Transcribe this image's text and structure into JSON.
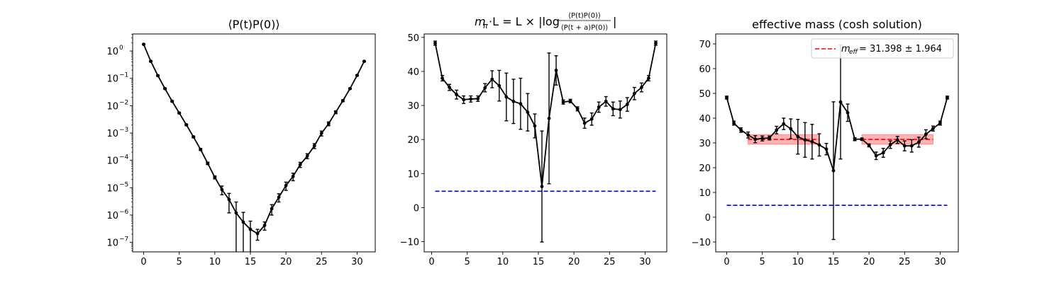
{
  "chart_data": [
    {
      "type": "line",
      "title": "⟨P(t)P(0)⟩",
      "yscale": "log",
      "xlim": [
        -1.55,
        32.55
      ],
      "ylim": [
        4.5e-08,
        4.2
      ],
      "xticks": [
        0,
        5,
        10,
        15,
        20,
        25,
        30
      ],
      "yticks": [
        {
          "value": 1,
          "base": "10",
          "exp": "0"
        },
        {
          "value": 0.1,
          "base": "10",
          "exp": "−1"
        },
        {
          "value": 0.01,
          "base": "10",
          "exp": "−2"
        },
        {
          "value": 0.001,
          "base": "10",
          "exp": "−3"
        },
        {
          "value": 0.0001,
          "base": "10",
          "exp": "−4"
        },
        {
          "value": 1e-05,
          "base": "10",
          "exp": "−5"
        },
        {
          "value": 1e-06,
          "base": "10",
          "exp": "−6"
        },
        {
          "value": 1e-07,
          "base": "10",
          "exp": "−7"
        }
      ],
      "series": [
        {
          "color": "#000000",
          "points": [
            {
              "x": 0,
              "y": 1.75,
              "err": 0.07
            },
            {
              "x": 1,
              "y": 0.42,
              "err": 0.02
            },
            {
              "x": 2,
              "y": 0.125,
              "err": 0.006
            },
            {
              "x": 3,
              "y": 0.042,
              "err": 0.002
            },
            {
              "x": 4,
              "y": 0.0145,
              "err": 0.0008
            },
            {
              "x": 5,
              "y": 0.0054,
              "err": 0.0003
            },
            {
              "x": 6,
              "y": 0.002,
              "err": 0.00012
            },
            {
              "x": 7,
              "y": 0.00072,
              "err": 5e-05
            },
            {
              "x": 8,
              "y": 0.00025,
              "err": 2e-05
            },
            {
              "x": 9,
              "y": 7.8e-05,
              "err": 8e-06
            },
            {
              "x": 10,
              "y": 2.4e-05,
              "err": 3e-06
            },
            {
              "x": 11,
              "y": 8.5e-06,
              "err": 3e-06
            },
            {
              "x": 12,
              "y": 3.7e-06,
              "err": 2.5e-06
            },
            {
              "x": 13,
              "y": 1.2e-06,
              "err": 1.8e-06
            },
            {
              "x": 14,
              "y": 5.5e-07,
              "err": 7e-07
            },
            {
              "x": 15,
              "y": 3e-07,
              "err": 3e-07
            },
            {
              "x": 16,
              "y": 2.1e-07,
              "err": 9e-08
            },
            {
              "x": 17,
              "y": 4.2e-07,
              "err": 1.4e-07
            },
            {
              "x": 18,
              "y": 1.7e-06,
              "err": 7e-07
            },
            {
              "x": 19,
              "y": 4.5e-06,
              "err": 1.5e-06
            },
            {
              "x": 20,
              "y": 1.2e-05,
              "err": 4e-06
            },
            {
              "x": 21,
              "y": 2.6e-05,
              "err": 8e-06
            },
            {
              "x": 22,
              "y": 7e-05,
              "err": 1.5e-05
            },
            {
              "x": 23,
              "y": 0.000145,
              "err": 3e-05
            },
            {
              "x": 24,
              "y": 0.00034,
              "err": 7e-05
            },
            {
              "x": 25,
              "y": 0.00098,
              "err": 0.0002
            },
            {
              "x": 26,
              "y": 0.0022,
              "err": 0.00035
            },
            {
              "x": 27,
              "y": 0.0058,
              "err": 0.0007
            },
            {
              "x": 28,
              "y": 0.0152,
              "err": 0.0012
            },
            {
              "x": 29,
              "y": 0.042,
              "err": 0.002
            },
            {
              "x": 30,
              "y": 0.128,
              "err": 0.005
            },
            {
              "x": 31,
              "y": 0.42,
              "err": 0.015
            }
          ]
        }
      ]
    },
    {
      "type": "line",
      "title_parts": {
        "mass": "m",
        "mass_sub": "π",
        "mid": "·L = L × |log",
        "num": "⟨P(t)P(0)⟩",
        "den": "⟨P(t + a)P(0)⟩",
        "end": "|"
      },
      "xlim": [
        -1.05,
        33.05
      ],
      "ylim": [
        -13,
        51
      ],
      "xticks": [
        0,
        5,
        10,
        15,
        20,
        25,
        30
      ],
      "yticks": [
        -10,
        0,
        10,
        20,
        30,
        40,
        50
      ],
      "series": [
        {
          "color": "#000000",
          "points": [
            {
              "x": 0.5,
              "y": 48.3,
              "err": 0.6
            },
            {
              "x": 1.5,
              "y": 38.0,
              "err": 0.8
            },
            {
              "x": 2.5,
              "y": 35.3,
              "err": 0.9
            },
            {
              "x": 3.5,
              "y": 33.2,
              "err": 1.3
            },
            {
              "x": 4.5,
              "y": 31.7,
              "err": 1.1
            },
            {
              "x": 5.5,
              "y": 31.9,
              "err": 0.9
            },
            {
              "x": 6.5,
              "y": 32.0,
              "err": 0.8
            },
            {
              "x": 7.5,
              "y": 35.2,
              "err": 1.2
            },
            {
              "x": 8.5,
              "y": 37.7,
              "err": 2.5
            },
            {
              "x": 9.5,
              "y": 35.8,
              "err": 4.5
            },
            {
              "x": 10.5,
              "y": 32.5,
              "err": 7.0
            },
            {
              "x": 11.5,
              "y": 31.2,
              "err": 6.5
            },
            {
              "x": 12.5,
              "y": 30.5,
              "err": 7.5
            },
            {
              "x": 13.5,
              "y": 28.0,
              "err": 5.5
            },
            {
              "x": 14.5,
              "y": 24.0,
              "err": 3.5
            },
            {
              "x": 15.5,
              "y": 6.2,
              "err": 16.3
            },
            {
              "x": 16.5,
              "y": 26.2,
              "err": 19.2
            },
            {
              "x": 17.5,
              "y": 40.3,
              "err": 4.3
            },
            {
              "x": 18.5,
              "y": 31.0,
              "err": 0.6
            },
            {
              "x": 19.5,
              "y": 31.3,
              "err": 0.5
            },
            {
              "x": 20.5,
              "y": 29.0,
              "err": 0.6
            },
            {
              "x": 21.5,
              "y": 24.8,
              "err": 1.5
            },
            {
              "x": 22.5,
              "y": 26.0,
              "err": 1.8
            },
            {
              "x": 23.5,
              "y": 29.5,
              "err": 1.5
            },
            {
              "x": 24.5,
              "y": 31.2,
              "err": 1.4
            },
            {
              "x": 25.5,
              "y": 29.0,
              "err": 2.0
            },
            {
              "x": 26.5,
              "y": 28.8,
              "err": 2.5
            },
            {
              "x": 27.5,
              "y": 30.3,
              "err": 2.0
            },
            {
              "x": 28.5,
              "y": 33.5,
              "err": 1.8
            },
            {
              "x": 29.5,
              "y": 35.3,
              "err": 1.3
            },
            {
              "x": 30.5,
              "y": 38.0,
              "err": 0.8
            },
            {
              "x": 31.5,
              "y": 48.3,
              "err": 0.6
            }
          ]
        }
      ],
      "hlines": [
        {
          "y": 4.8,
          "x0": 0.5,
          "x1": 31.5,
          "color": "#0000ff",
          "style": "dashed"
        }
      ]
    },
    {
      "type": "line",
      "title": "effective mass (cosh solution)",
      "xlim": [
        -1.55,
        32.55
      ],
      "ylim": [
        -14,
        74
      ],
      "xticks": [
        0,
        5,
        10,
        15,
        20,
        25,
        30
      ],
      "yticks": [
        -10,
        0,
        10,
        20,
        30,
        40,
        50,
        60,
        70
      ],
      "legend": {
        "placement": "top-right",
        "label_sub": "eff",
        "label_value": " = 31.398 ± 1.964",
        "color": "#ff0000"
      },
      "series": [
        {
          "color": "#000000",
          "points": [
            {
              "x": 0,
              "y": 48.3,
              "err": 0.6
            },
            {
              "x": 1,
              "y": 38.0,
              "err": 0.8
            },
            {
              "x": 2,
              "y": 35.2,
              "err": 0.9
            },
            {
              "x": 3,
              "y": 33.2,
              "err": 1.2
            },
            {
              "x": 4,
              "y": 31.5,
              "err": 1.4
            },
            {
              "x": 5,
              "y": 31.8,
              "err": 1.0
            },
            {
              "x": 6,
              "y": 32.0,
              "err": 0.8
            },
            {
              "x": 7,
              "y": 35.2,
              "err": 1.5
            },
            {
              "x": 8,
              "y": 37.7,
              "err": 2.3
            },
            {
              "x": 9,
              "y": 35.7,
              "err": 4.0
            },
            {
              "x": 10,
              "y": 32.5,
              "err": 7.0
            },
            {
              "x": 11,
              "y": 31.2,
              "err": 7.0
            },
            {
              "x": 12,
              "y": 30.5,
              "err": 7.0
            },
            {
              "x": 13,
              "y": 29.2,
              "err": 4.5
            },
            {
              "x": 14,
              "y": 27.5,
              "err": 2.3
            },
            {
              "x": 15,
              "y": 18.8,
              "err": 27.8
            },
            {
              "x": 16,
              "y": 46.5,
              "err": 23.0
            },
            {
              "x": 17,
              "y": 42.2,
              "err": 3.5
            },
            {
              "x": 18,
              "y": 31.5,
              "err": 0.6
            },
            {
              "x": 19,
              "y": 31.5,
              "err": 0.5
            },
            {
              "x": 20,
              "y": 29.0,
              "err": 0.6
            },
            {
              "x": 21,
              "y": 24.8,
              "err": 1.5
            },
            {
              "x": 22,
              "y": 26.0,
              "err": 1.8
            },
            {
              "x": 23,
              "y": 29.3,
              "err": 1.5
            },
            {
              "x": 24,
              "y": 31.2,
              "err": 1.4
            },
            {
              "x": 25,
              "y": 28.8,
              "err": 2.0
            },
            {
              "x": 26,
              "y": 28.8,
              "err": 2.5
            },
            {
              "x": 27,
              "y": 30.3,
              "err": 2.0
            },
            {
              "x": 28,
              "y": 33.5,
              "err": 1.8
            },
            {
              "x": 29,
              "y": 35.8,
              "err": 1.0
            },
            {
              "x": 30,
              "y": 38.0,
              "err": 0.8
            },
            {
              "x": 31,
              "y": 48.3,
              "err": 0.6
            }
          ]
        }
      ],
      "hlines": [
        {
          "y": 4.8,
          "x0": 0,
          "x1": 31,
          "color": "#0000ff",
          "style": "dashed"
        }
      ],
      "fit_bands": [
        {
          "x0": 3,
          "x1": 13,
          "center": 31.398,
          "err": 1.964,
          "color": "#ff0000"
        },
        {
          "x0": 19,
          "x1": 29,
          "center": 31.398,
          "err": 1.964,
          "color": "#ff0000"
        }
      ]
    }
  ]
}
